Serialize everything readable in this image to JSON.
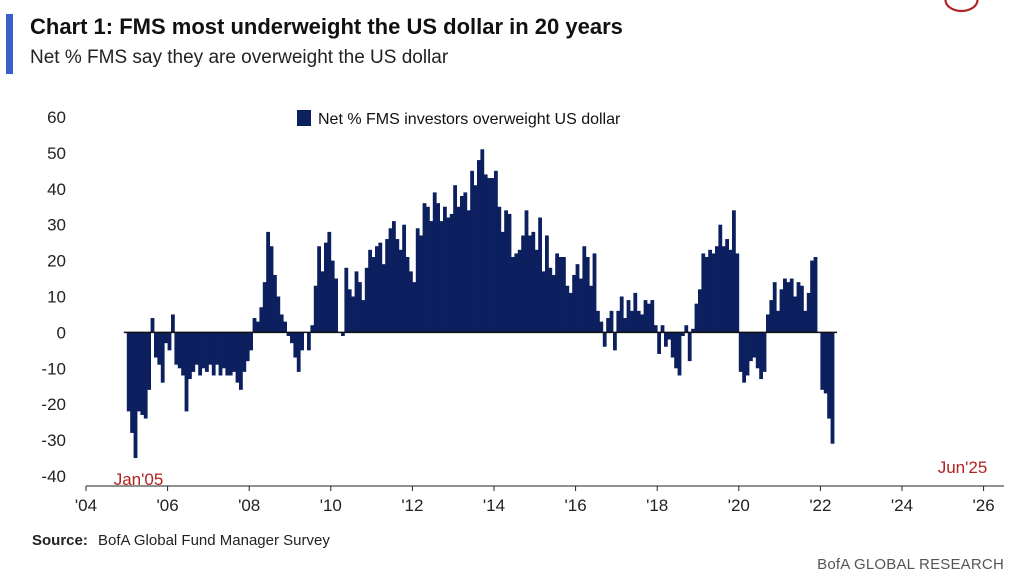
{
  "header": {
    "title": "Chart 1: FMS most underweight the US dollar in 20 years",
    "subtitle": "Net % FMS say they are overweight the US dollar"
  },
  "footer": {
    "source_label": "Source:",
    "source_text": "BofA Global Fund Manager Survey",
    "brand": "BofA GLOBAL RESEARCH"
  },
  "colors": {
    "bar": "#0c1f5e",
    "annotation": "#b22222",
    "accent": "#3a5fcd"
  },
  "chart_data": {
    "type": "bar",
    "title": "",
    "xlabel": "",
    "ylabel": "",
    "legend": {
      "label": "Net % FMS investors overweight US dollar",
      "position": "top-center"
    },
    "grid": false,
    "ylim": [
      -40,
      60
    ],
    "yticks": [
      60,
      50,
      40,
      30,
      20,
      10,
      0,
      -10,
      -20,
      -30,
      -40
    ],
    "xlim": [
      2004,
      2026.5
    ],
    "xticks": [
      {
        "value": 2004,
        "label": "'04"
      },
      {
        "value": 2006,
        "label": "'06"
      },
      {
        "value": 2008,
        "label": "'08"
      },
      {
        "value": 2010,
        "label": "'10"
      },
      {
        "value": 2012,
        "label": "'12"
      },
      {
        "value": 2014,
        "label": "'14"
      },
      {
        "value": 2016,
        "label": "'16"
      },
      {
        "value": 2018,
        "label": "'18"
      },
      {
        "value": 2020,
        "label": "'20"
      },
      {
        "value": 2022,
        "label": "'22"
      },
      {
        "value": 2024,
        "label": "'24"
      },
      {
        "value": 2026,
        "label": "'26"
      }
    ],
    "start": "Jan 2005",
    "frequency": "monthly",
    "series": [
      {
        "values": [
          -22,
          -28,
          -35,
          -22,
          -23,
          -24,
          -16,
          4,
          -7,
          -9,
          -14,
          -3,
          -5,
          5,
          -9,
          -10,
          -12,
          -22,
          -13,
          -11,
          -9,
          -12,
          -10,
          -11,
          -9,
          -12,
          -9,
          -12,
          -10,
          -12,
          -12,
          -11,
          -14,
          -16,
          -11,
          -8,
          -5,
          4,
          3,
          7,
          14,
          28,
          24,
          16,
          10,
          5,
          3,
          -1,
          -3,
          -7,
          -11,
          -5,
          0,
          -5,
          2,
          13,
          24,
          17,
          25,
          28,
          20,
          15,
          0,
          -1,
          18,
          12,
          10,
          17,
          14,
          9,
          18,
          23,
          21,
          24,
          25,
          19,
          26,
          29,
          31,
          26,
          23,
          30,
          21,
          17,
          14,
          29,
          27,
          36,
          35,
          31,
          39,
          36,
          31,
          35,
          32,
          33,
          41,
          35,
          38,
          39,
          34,
          45,
          41,
          48,
          51,
          44,
          43,
          43,
          45,
          35,
          28,
          34,
          33,
          21,
          22,
          23,
          27,
          34,
          27,
          28,
          23,
          32,
          17,
          27,
          18,
          16,
          22,
          21,
          21,
          13,
          11,
          16,
          19,
          15,
          24,
          21,
          13,
          22,
          6,
          3,
          -4,
          4,
          6,
          -5,
          6,
          10,
          4,
          9,
          6,
          11,
          6,
          5,
          9,
          8,
          9,
          2,
          -6,
          2,
          -4,
          -2,
          -7,
          -10,
          -12,
          -1,
          2,
          -8,
          1,
          8,
          12,
          22,
          21,
          23,
          22,
          24,
          30,
          24,
          26,
          23,
          34,
          22,
          -11,
          -14,
          -12,
          -8,
          -7,
          -10,
          -13,
          -11,
          5,
          9,
          14,
          6,
          12,
          15,
          14,
          15,
          10,
          14,
          13,
          6,
          11,
          20,
          21,
          0,
          -16,
          -17,
          -24,
          -31
        ]
      }
    ],
    "annotations": [
      {
        "label": "Jan'05",
        "target": "Jan 2005"
      },
      {
        "label": "Jun'25",
        "target": "Jun 2025"
      }
    ]
  }
}
